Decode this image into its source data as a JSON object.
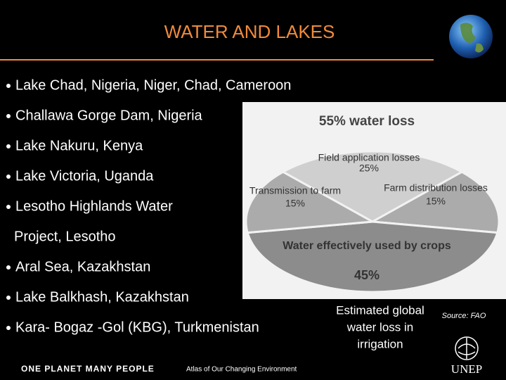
{
  "title": "WATER AND LAKES",
  "bullets": [
    [
      "Lake Chad, Nigeria, Niger, Chad, Cameroon"
    ],
    [
      "Challawa Gorge Dam, Nigeria"
    ],
    [
      "Lake Nakuru, Kenya"
    ],
    [
      "Lake Victoria, Uganda"
    ],
    [
      "Lesotho Highlands Water",
      "Project, Lesotho"
    ],
    [
      "Aral Sea, Kazakhstan"
    ],
    [
      "Lake Balkhash, Kazakhstan"
    ],
    [
      "Kara- Bogaz -Gol  (KBG), Turkmenistan"
    ]
  ],
  "figure": {
    "type": "pie",
    "title": "55% water loss",
    "slices": [
      {
        "label": "Field application losses",
        "value": 25,
        "value_label": "25%",
        "color": "#cfcfcf"
      },
      {
        "label": "Farm distribution losses",
        "value": 15,
        "value_label": "15%",
        "color": "#ababab"
      },
      {
        "label": "Water effectively used by crops",
        "value": 45,
        "value_label": "45%",
        "color": "#8c8c8c"
      },
      {
        "label": "Transmission to farm",
        "value": 15,
        "value_label": "15%",
        "color": "#ababab"
      }
    ]
  },
  "caption": [
    "Estimated global",
    "water loss in",
    "irrigation"
  ],
  "source": "Source: FAO",
  "footer": {
    "brand": "ONE PLANET  MANY PEOPLE",
    "subtitle": "Atlas of Our Changing Environment",
    "logo": "UNEP"
  }
}
